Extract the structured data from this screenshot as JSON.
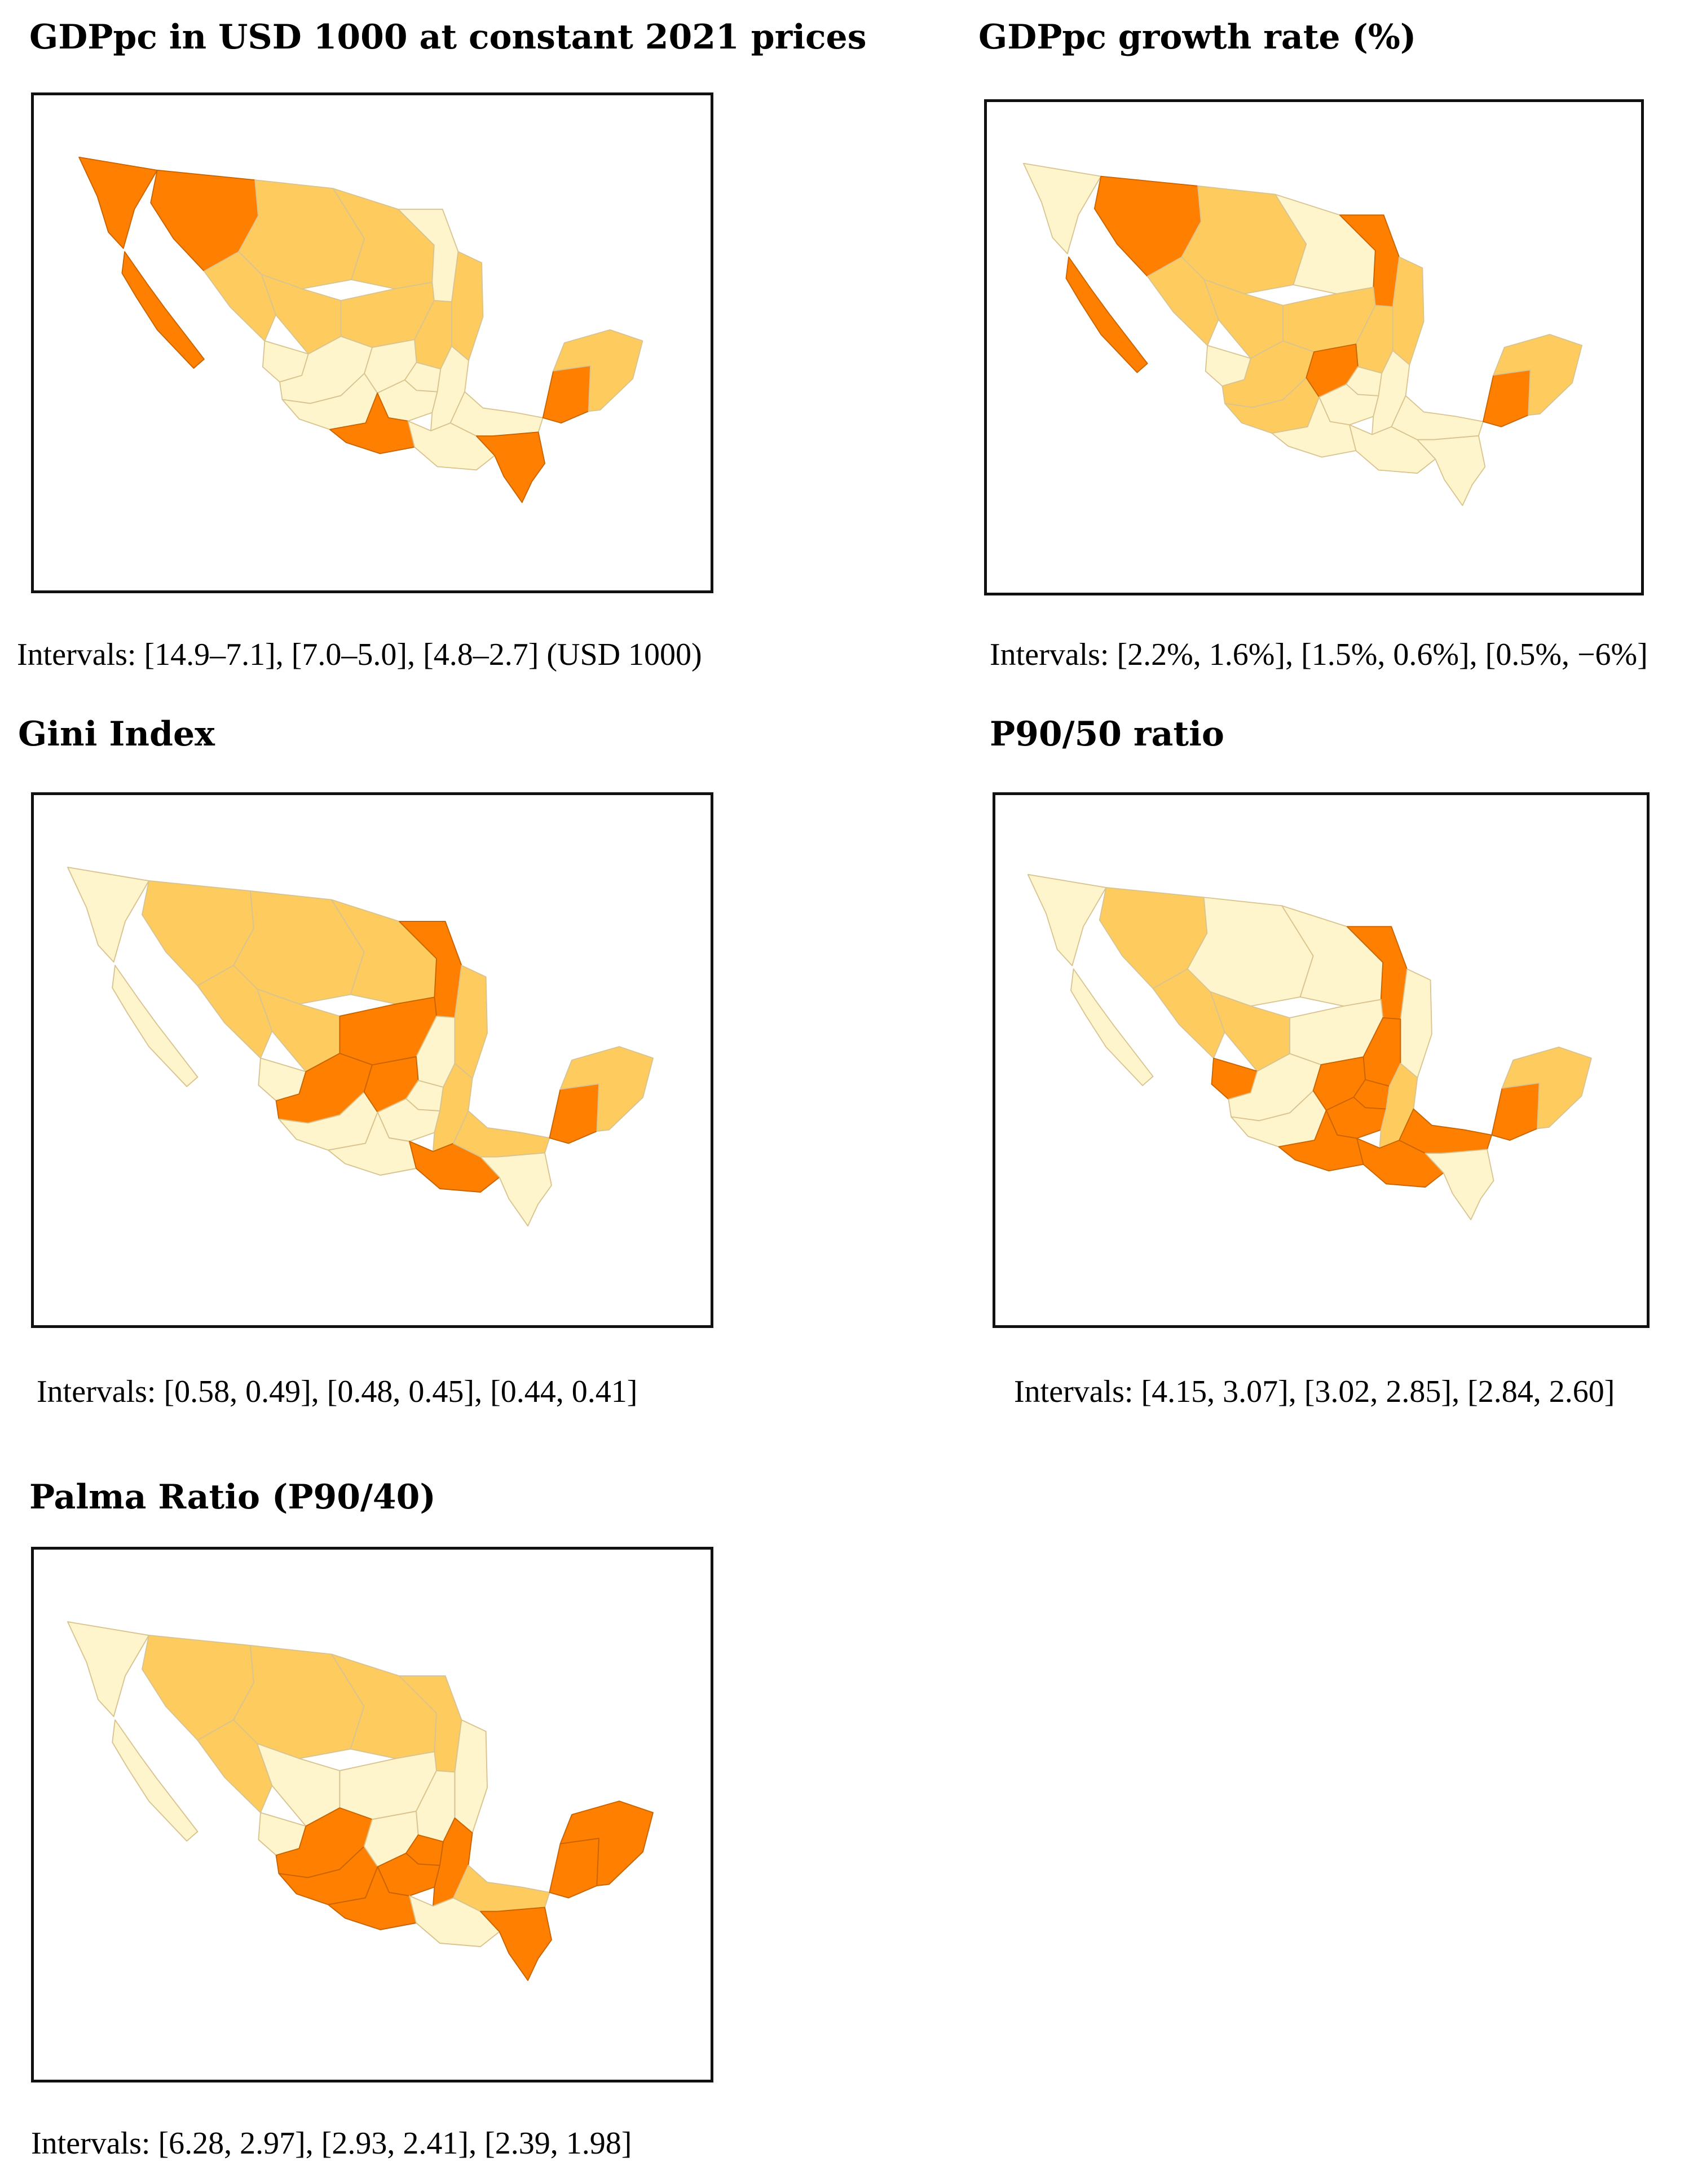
{
  "colors": {
    "high": "#ff7f00",
    "mid": "#fdcb5e",
    "low": "#fff5cc"
  },
  "maps": [
    {
      "id": "gdppc",
      "title": "GDPpc in USD 1000 at constant 2021 prices",
      "caption": "Intervals: [14.9–7.1], [7.0–5.0], [4.8–2.7] (USD 1000)",
      "classes": [
        3,
        3,
        2,
        3,
        2,
        2,
        2,
        1,
        2,
        2,
        2,
        1,
        1,
        1,
        1,
        1,
        1,
        3,
        1,
        1,
        1,
        3,
        3,
        2
      ]
    },
    {
      "id": "growth",
      "title": "GDPpc growth rate (%)",
      "caption": "Intervals: [2.2%, 1.6%], [1.5%, 0.6%], [0.5%, −6%]",
      "classes": [
        1,
        3,
        2,
        3,
        2,
        2,
        1,
        3,
        2,
        2,
        2,
        1,
        2,
        2,
        3,
        1,
        1,
        1,
        1,
        1,
        1,
        1,
        3,
        2
      ]
    },
    {
      "id": "gini",
      "title": "Gini Index",
      "caption": "Intervals: [0.58, 0.49], [0.48, 0.45], [0.44, 0.41]",
      "classes": [
        1,
        2,
        2,
        1,
        2,
        2,
        2,
        3,
        2,
        3,
        1,
        1,
        3,
        1,
        3,
        1,
        1,
        1,
        2,
        3,
        2,
        1,
        3,
        2
      ]
    },
    {
      "id": "p9050",
      "title": "P90/50 ratio",
      "caption": "Intervals: [4.15, 3.07], [3.02, 2.85], [2.84, 2.60]",
      "classes": [
        1,
        2,
        1,
        1,
        2,
        2,
        1,
        3,
        1,
        1,
        3,
        3,
        1,
        1,
        3,
        3,
        3,
        3,
        2,
        3,
        3,
        1,
        3,
        2
      ]
    },
    {
      "id": "palma",
      "title": "Palma Ratio (P90/40)",
      "caption": "Intervals: [6.28, 2.97], [2.93, 2.41], [2.39, 1.98]",
      "classes": [
        1,
        2,
        2,
        1,
        2,
        1,
        2,
        2,
        1,
        1,
        1,
        1,
        3,
        3,
        1,
        3,
        3,
        3,
        3,
        1,
        2,
        3,
        3,
        3
      ]
    }
  ]
}
